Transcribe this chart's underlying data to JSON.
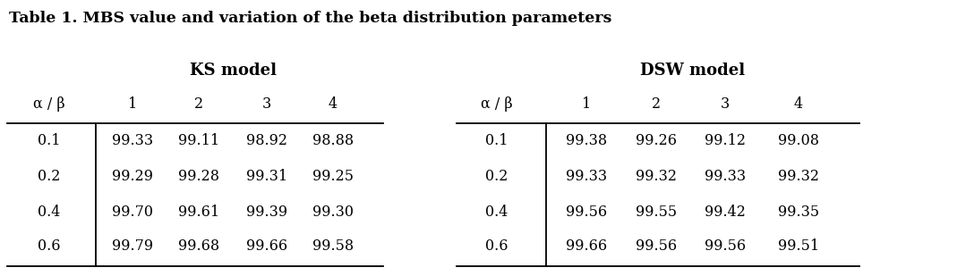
{
  "title": "Table 1. MBS value and variation of the beta distribution parameters",
  "ks_header": "KS model",
  "dsw_header": "DSW model",
  "col_header": [
    "α / β",
    "1",
    "2",
    "3",
    "4"
  ],
  "row_labels": [
    "0.1",
    "0.2",
    "0.4",
    "0.6"
  ],
  "ks_data": [
    [
      "99.33",
      "99.11",
      "98.92",
      "98.88"
    ],
    [
      "99.29",
      "99.28",
      "99.31",
      "99.25"
    ],
    [
      "99.70",
      "99.61",
      "99.39",
      "99.30"
    ],
    [
      "99.79",
      "99.68",
      "99.66",
      "99.58"
    ]
  ],
  "dsw_data": [
    [
      "99.38",
      "99.26",
      "99.12",
      "99.08"
    ],
    [
      "99.33",
      "99.32",
      "99.33",
      "99.32"
    ],
    [
      "99.56",
      "99.55",
      "99.42",
      "99.35"
    ],
    [
      "99.66",
      "99.56",
      "99.56",
      "99.51"
    ]
  ],
  "bg_color": "#ffffff",
  "text_color": "#000000",
  "title_fontsize": 12.5,
  "model_fontsize": 13,
  "cell_fontsize": 11.5,
  "fig_width": 10.69,
  "fig_height": 3.09,
  "dpi": 100
}
